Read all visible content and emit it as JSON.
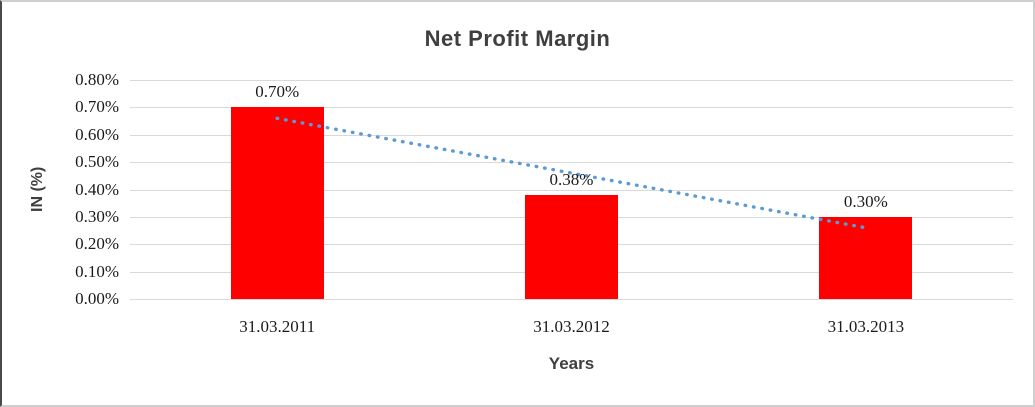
{
  "frame": {
    "background": "#FFFFFF",
    "border_color": "#CFCFCF"
  },
  "chart_data": {
    "type": "bar",
    "title": "Net Profit Margin",
    "categories": [
      "31.03.2011",
      "31.03.2012",
      "31.03.2013"
    ],
    "values": [
      0.7,
      0.38,
      0.3
    ],
    "data_labels": [
      "0.70%",
      "0.38%",
      "0.30%"
    ],
    "xlabel": "Years",
    "ylabel": "IN (%)",
    "ylim": [
      0,
      0.8
    ],
    "ytick_step": 0.1,
    "yticks": [
      "0.00%",
      "0.10%",
      "0.20%",
      "0.30%",
      "0.40%",
      "0.50%",
      "0.60%",
      "0.70%",
      "0.80%"
    ],
    "grid": true,
    "legend": "none",
    "bar_color": "#FF0000",
    "gridline_color": "#D9D9D9",
    "title_color": "#3F3F3F",
    "axis_title_color": "#3F3F3F",
    "tick_label_color": "#1A1A1A",
    "trendline": {
      "type": "linear",
      "style": "dotted",
      "color": "#5B9BD5",
      "start_value": 0.66,
      "end_value": 0.26
    }
  }
}
